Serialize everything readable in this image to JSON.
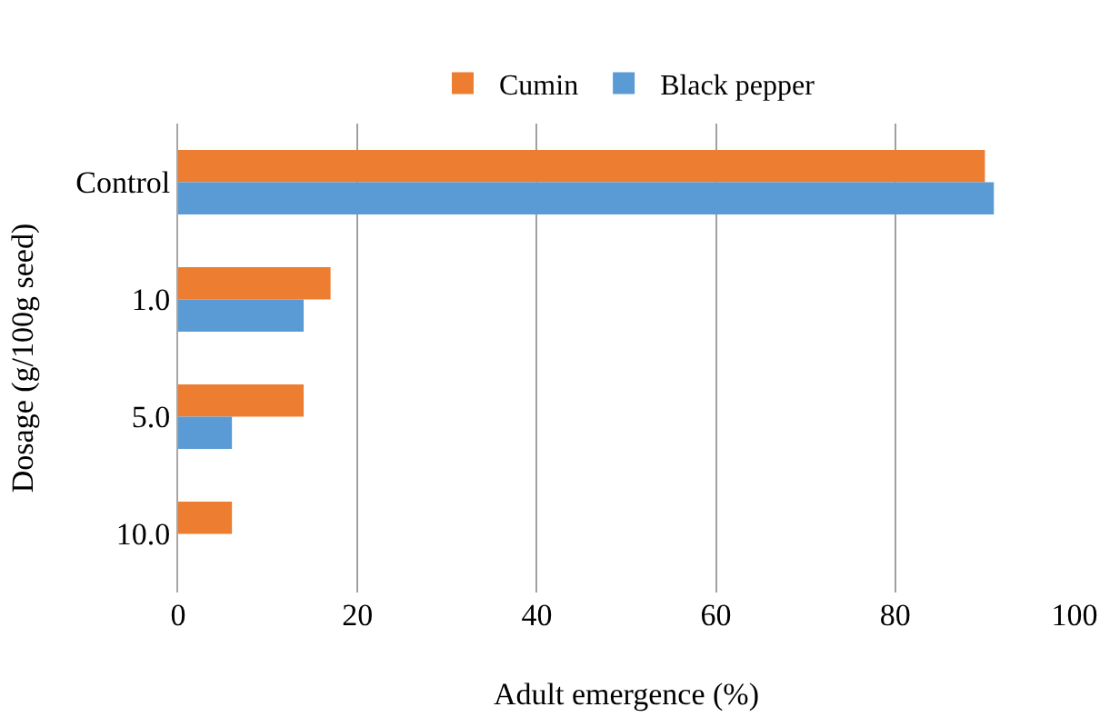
{
  "chart_data": {
    "type": "bar",
    "orientation": "horizontal",
    "categories": [
      "Control",
      "1.0",
      "5.0",
      "10.0"
    ],
    "series": [
      {
        "name": "Cumin",
        "color": "#ed7d31",
        "values": [
          90,
          17,
          14,
          6
        ]
      },
      {
        "name": "Black pepper",
        "color": "#5b9bd5",
        "values": [
          91,
          14,
          6,
          0
        ]
      }
    ],
    "xlabel": "Adult emergence (%)",
    "ylabel": "Dosage (g/100g seed)",
    "xlim": [
      0,
      100
    ],
    "xticks": [
      0,
      20,
      40,
      60,
      80,
      100
    ],
    "grid": "x",
    "legend": "top"
  }
}
